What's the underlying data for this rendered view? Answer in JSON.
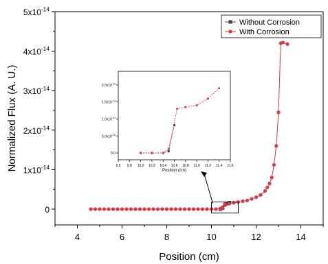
{
  "chart_data": [
    {
      "type": "line",
      "xlabel": "Position (cm)",
      "ylabel": "Normalized Flux (A. U.)",
      "xlim": [
        3,
        15
      ],
      "ylim": [
        -0.4,
        5.0
      ],
      "y_exponent_label": "x10",
      "y_exponent_power": "-14",
      "xticks": [
        4,
        6,
        8,
        10,
        12,
        14
      ],
      "xtick_labels": [
        "4",
        "6",
        "8",
        "10",
        "12",
        "14"
      ],
      "yticks": [
        0,
        1,
        2,
        3,
        4,
        5
      ],
      "ytick_mantissas": [
        "0",
        "1x10",
        "2x10",
        "3x10",
        "4x10",
        "5x10"
      ],
      "ytick_powers": [
        "",
        "-14",
        "-14",
        "-14",
        "-14",
        "-14"
      ],
      "legend_position": "top-right",
      "series": [
        {
          "name": "Without Corrosion",
          "color": "#444444",
          "marker": "square",
          "x": [
            10.4,
            10.5,
            10.6,
            10.7,
            10.8
          ],
          "y": [
            0.0,
            0.03,
            0.11,
            0.14,
            0.16
          ]
        },
        {
          "name": "With Corrosion",
          "color": "#e8323c",
          "marker": "circle",
          "x": [
            4.6,
            4.8,
            5.0,
            5.2,
            5.4,
            5.6,
            5.8,
            6.0,
            6.2,
            6.4,
            6.6,
            6.8,
            7.0,
            7.2,
            7.4,
            7.6,
            7.8,
            8.0,
            8.2,
            8.4,
            8.6,
            8.8,
            9.0,
            9.2,
            9.4,
            9.6,
            9.8,
            10.0,
            10.2,
            10.4,
            10.5,
            10.6,
            10.8,
            11.0,
            11.2,
            11.4,
            11.6,
            11.8,
            12.0,
            12.2,
            12.4,
            12.5,
            12.6,
            12.7,
            12.8,
            12.9,
            13.0,
            13.1,
            13.2,
            13.4
          ],
          "y": [
            0,
            0,
            0,
            0,
            0,
            0,
            0,
            0,
            0,
            0,
            0,
            0,
            0,
            0,
            0,
            0,
            0,
            0,
            0,
            0,
            0,
            0,
            0,
            0,
            0,
            0,
            0,
            0,
            0,
            0.01,
            0.05,
            0.13,
            0.14,
            0.16,
            0.18,
            0.2,
            0.22,
            0.26,
            0.3,
            0.36,
            0.46,
            0.55,
            0.65,
            0.8,
            1.12,
            1.6,
            2.45,
            4.2,
            4.22,
            4.18
          ]
        }
      ],
      "annotation": {
        "type": "zoom-box",
        "x_range": [
          10.0,
          11.2
        ],
        "y_range": [
          -0.1,
          0.18
        ]
      }
    },
    {
      "type": "line",
      "role": "inset",
      "xlabel": "Position (cm)",
      "xlim": [
        9.6,
        11.6
      ],
      "ylim": [
        -0.2,
        2.4
      ],
      "xticks": [
        9.6,
        9.8,
        10.0,
        10.2,
        10.4,
        10.6,
        10.8,
        11.0,
        11.2,
        11.4,
        11.6
      ],
      "xtick_labels": [
        "9.6",
        "9.8",
        "10.0",
        "10.2",
        "10.4",
        "10.6",
        "10.8",
        "11.0",
        "11.2",
        "11.4",
        "11.6"
      ],
      "yticks": [
        0,
        0.5,
        1.0,
        1.5,
        2.0
      ],
      "ytick_mantissas": [
        "0.0",
        "5.0x10",
        "1.0x10",
        "1.5x10",
        "2.0x10"
      ],
      "ytick_powers": [
        "",
        "-15",
        "-14",
        "-14",
        "-14"
      ],
      "series": [
        {
          "name": "Without Corrosion",
          "color": "#444444",
          "marker": "square",
          "x": [
            10.0,
            10.2,
            10.4,
            10.5,
            10.6
          ],
          "y": [
            0.0,
            0.0,
            0.0,
            0.05,
            0.82
          ]
        },
        {
          "name": "With Corrosion",
          "color": "#e8323c",
          "marker": "circle",
          "x": [
            10.0,
            10.2,
            10.4,
            10.5,
            10.65,
            10.8,
            11.0,
            11.2,
            11.4
          ],
          "y": [
            0.0,
            0.0,
            0.0,
            0.12,
            1.3,
            1.35,
            1.4,
            1.6,
            1.9
          ]
        }
      ]
    }
  ]
}
